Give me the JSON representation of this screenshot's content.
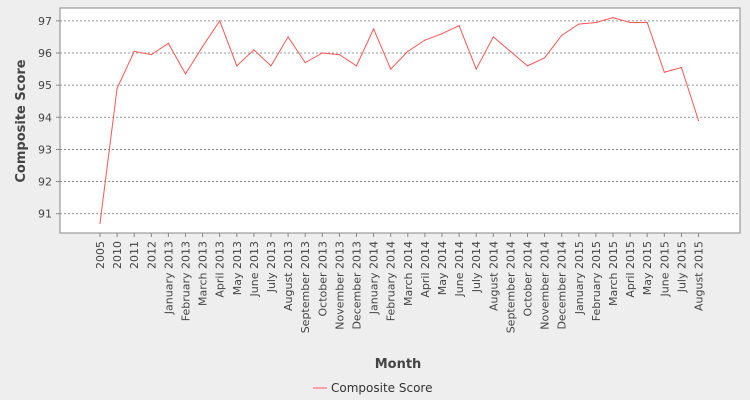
{
  "chart_data": {
    "type": "line",
    "title": "",
    "xlabel": "Month",
    "ylabel": "Composite Score",
    "ylim": [
      90.4,
      97.4
    ],
    "yticks": [
      91,
      92,
      93,
      94,
      95,
      96,
      97
    ],
    "grid": true,
    "legend_position": "bottom-center",
    "categories": [
      "2005",
      "2010",
      "2011",
      "2012",
      "January 2013",
      "February 2013",
      "March 2013",
      "April 2013",
      "May 2013",
      "June 2013",
      "July 2013",
      "August 2013",
      "September 2013",
      "October 2013",
      "November 2013",
      "December 2013",
      "January 2014",
      "February 2014",
      "March 2014",
      "April 2014",
      "May 2014",
      "June 2014",
      "July 2014",
      "August 2014",
      "September 2014",
      "October 2014",
      "November 2014",
      "December 2014",
      "January 2015",
      "February 2015",
      "March 2015",
      "April 2015",
      "May 2015",
      "June 2015",
      "July 2015",
      "August 2015"
    ],
    "series": [
      {
        "name": "Composite Score",
        "color": "#ff5555",
        "values": [
          90.7,
          94.9,
          96.05,
          95.95,
          96.3,
          95.35,
          96.2,
          97.0,
          95.6,
          96.1,
          95.6,
          96.5,
          95.7,
          96.0,
          95.95,
          95.6,
          96.75,
          95.5,
          96.05,
          96.4,
          96.6,
          96.85,
          95.5,
          96.5,
          96.05,
          95.6,
          95.85,
          96.55,
          96.9,
          96.95,
          97.1,
          96.95,
          96.95,
          95.4,
          95.55,
          93.9
        ]
      }
    ]
  }
}
